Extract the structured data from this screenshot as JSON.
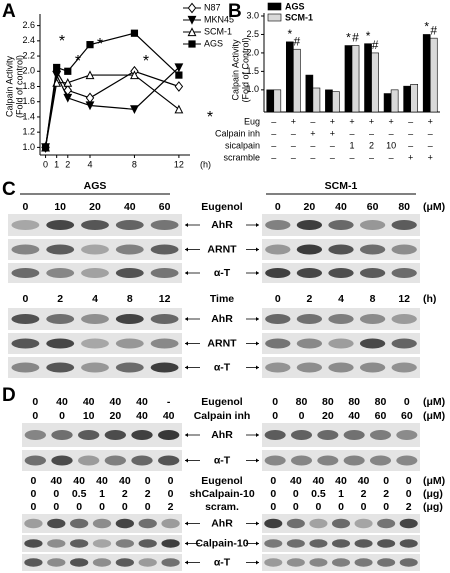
{
  "chart_data": [
    {
      "type": "line",
      "panel": "A",
      "ylabel": [
        "Calpain Activity",
        "(Fold of control)"
      ],
      "xlabel": "(h)",
      "x": [
        0,
        1,
        2,
        4,
        8,
        12
      ],
      "xlim": [
        -0.5,
        13
      ],
      "xticks": [
        0,
        1,
        2,
        4,
        8,
        12
      ],
      "ylim": [
        0.9,
        2.7
      ],
      "yticks": [
        {
          "value": 1.0,
          "label": "1.0"
        },
        1.2,
        1.4,
        1.6,
        1.8,
        {
          "value": 2.0,
          "label": "2.0"
        },
        2.2,
        2.4,
        2.6
      ],
      "series": [
        {
          "name": "N87",
          "color": "#000000",
          "marker": "diamond-open",
          "values": [
            1.0,
            2.0,
            1.75,
            1.65,
            2.0,
            1.8
          ]
        },
        {
          "name": "MKN45",
          "color": "#000000",
          "marker": "triangle-down",
          "values": [
            1.0,
            1.95,
            1.65,
            1.55,
            1.5,
            2.05
          ]
        },
        {
          "name": "SCM-1",
          "color": "#000000",
          "marker": "triangle-open",
          "values": [
            1.0,
            1.85,
            1.85,
            1.95,
            1.95,
            1.5
          ]
        },
        {
          "name": "AGS",
          "color": "#000000",
          "marker": "square",
          "values": [
            1.0,
            2.05,
            2.0,
            2.35,
            2.5,
            1.95
          ]
        }
      ],
      "annotations": [
        "*",
        "*",
        "*",
        "*",
        "*"
      ]
    },
    {
      "type": "bar",
      "panel": "B",
      "ylabel": [
        "Calpain Activity",
        "(Fold of Control)"
      ],
      "categories": [
        null,
        null,
        null,
        null,
        null,
        null,
        null,
        null,
        null
      ],
      "ylim": [
        0.4,
        3.0
      ],
      "yticks": [
        {
          "value": 1.0,
          "label": "1.0"
        },
        1.5,
        {
          "value": 2.0,
          "label": "2.0"
        },
        2.5,
        {
          "value": 3.0,
          "label": "3.0"
        }
      ],
      "series": [
        {
          "name": "AGS",
          "color": "#000000",
          "values": [
            1.0,
            2.3,
            1.4,
            1.0,
            2.2,
            2.25,
            0.9,
            1.1,
            2.5
          ],
          "significance": [
            null,
            "*",
            null,
            null,
            "*",
            "*",
            null,
            null,
            "*"
          ]
        },
        {
          "name": "SCM-1",
          "color": "#d9d9d9",
          "values": [
            1.0,
            2.1,
            1.05,
            0.95,
            2.2,
            2.0,
            1.0,
            1.15,
            2.4
          ],
          "significance": [
            null,
            "#",
            null,
            null,
            "#",
            "#",
            null,
            null,
            "#"
          ]
        }
      ],
      "conditions": [
        {
          "label": "Eug",
          "values": [
            "–",
            "+",
            "–",
            "+",
            "+",
            "+",
            "+",
            "–",
            "+"
          ]
        },
        {
          "label": "Calpain inh",
          "values": [
            "–",
            "–",
            "+",
            "+",
            "–",
            "–",
            "–",
            "–",
            "–"
          ]
        },
        {
          "label": "sicalpain",
          "values": [
            "–",
            "–",
            "–",
            "–",
            "1",
            "2",
            "10",
            "–",
            "–"
          ]
        },
        {
          "label": "scramble",
          "values": [
            "–",
            "–",
            "–",
            "–",
            "–",
            "–",
            "–",
            "+",
            "+"
          ]
        }
      ]
    }
  ],
  "blots": [
    {
      "panel": "C",
      "headers": [
        "AGS",
        "SCM-1"
      ],
      "sections": [
        {
          "rows": [
            {
              "label": "Eugenol",
              "unit": "(μM)",
              "left": [
                "0",
                "10",
                "20",
                "40",
                "60"
              ],
              "right": [
                "0",
                "20",
                "40",
                "60",
                "80"
              ]
            }
          ],
          "bands": [
            "AhR",
            "ARNT",
            "α-T"
          ]
        },
        {
          "rows": [
            {
              "label": "Time",
              "unit": "(h)",
              "left": [
                "0",
                "2",
                "4",
                "8",
                "12"
              ],
              "right": [
                "0",
                "2",
                "4",
                "8",
                "12"
              ]
            }
          ],
          "bands": [
            "AhR",
            "ARNT",
            "α-T"
          ]
        }
      ]
    },
    {
      "panel": "D",
      "sections": [
        {
          "rows": [
            {
              "label": "Eugenol",
              "unit": "(μM)",
              "left": [
                "0",
                "40",
                "40",
                "40",
                "40",
                "-"
              ],
              "right": [
                "0",
                "80",
                "80",
                "80",
                "80",
                "0"
              ]
            },
            {
              "label": "Calpain inh",
              "unit": "(μM)",
              "left": [
                "0",
                "0",
                "10",
                "20",
                "40",
                "40"
              ],
              "right": [
                "0",
                "0",
                "20",
                "40",
                "60",
                "60"
              ]
            }
          ],
          "bands": [
            "AhR",
            "α-T"
          ]
        },
        {
          "rows": [
            {
              "label": "Eugenol",
              "unit": "(μM)",
              "left": [
                "0",
                "40",
                "40",
                "40",
                "40",
                "0",
                "0"
              ],
              "right": [
                "0",
                "40",
                "40",
                "40",
                "40",
                "0",
                "0"
              ]
            },
            {
              "label": "shCalpain-10",
              "unit": "(μg)",
              "left": [
                "0",
                "0",
                "0.5",
                "1",
                "2",
                "2",
                "0"
              ],
              "right": [
                "0",
                "0",
                "0.5",
                "1",
                "2",
                "2",
                "0"
              ]
            },
            {
              "label": "scram.",
              "unit": "(μg)",
              "left": [
                "0",
                "0",
                "0",
                "0",
                "0",
                "0",
                "2"
              ],
              "right": [
                "0",
                "0",
                "0",
                "0",
                "0",
                "0",
                "2"
              ]
            }
          ],
          "bands": [
            "AhR",
            "Calpain-10",
            "α-T"
          ]
        }
      ]
    }
  ]
}
